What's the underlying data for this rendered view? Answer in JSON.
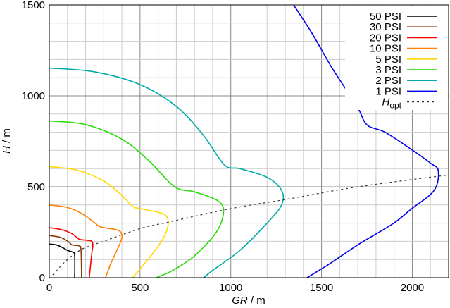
{
  "chart_data": {
    "type": "line",
    "xlabel_var": "GR",
    "xlabel_unit": " / m",
    "ylabel_var": "H",
    "ylabel_unit": " / m",
    "xlim": [
      0,
      2200
    ],
    "ylim": [
      0,
      1500
    ],
    "xticks": [
      0,
      500,
      1000,
      1500,
      2000
    ],
    "yticks": [
      0,
      500,
      1000,
      1500
    ],
    "grid": true,
    "legend": "top-right",
    "series": [
      {
        "name": "50 PSI",
        "color": "#000000",
        "dash": false,
        "points": [
          [
            0,
            185
          ],
          [
            40,
            180
          ],
          [
            80,
            162
          ],
          [
            100,
            150
          ],
          [
            130,
            140
          ],
          [
            140,
            120
          ],
          [
            140,
            0
          ]
        ]
      },
      {
        "name": "30 PSI",
        "color": "#8b3a0f",
        "dash": false,
        "points": [
          [
            0,
            232
          ],
          [
            60,
            222
          ],
          [
            100,
            202
          ],
          [
            127,
            180
          ],
          [
            165,
            175
          ],
          [
            175,
            150
          ],
          [
            178,
            0
          ]
        ]
      },
      {
        "name": "20 PSI",
        "color": "#ff0000",
        "dash": false,
        "points": [
          [
            0,
            275
          ],
          [
            60,
            266
          ],
          [
            120,
            245
          ],
          [
            160,
            215
          ],
          [
            175,
            209
          ],
          [
            230,
            202
          ],
          [
            240,
            180
          ],
          [
            235,
            140
          ],
          [
            220,
            0
          ]
        ]
      },
      {
        "name": "10 PSI",
        "color": "#ff7f00",
        "dash": false,
        "points": [
          [
            0,
            400
          ],
          [
            100,
            386
          ],
          [
            180,
            352
          ],
          [
            250,
            302
          ],
          [
            283,
            279
          ],
          [
            375,
            262
          ],
          [
            400,
            236
          ],
          [
            390,
            190
          ],
          [
            340,
            80
          ],
          [
            310,
            0
          ]
        ]
      },
      {
        "name": "5 PSI",
        "color": "#ffd700",
        "dash": false,
        "points": [
          [
            0,
            610
          ],
          [
            150,
            592
          ],
          [
            300,
            532
          ],
          [
            400,
            452
          ],
          [
            460,
            392
          ],
          [
            500,
            380
          ],
          [
            630,
            350
          ],
          [
            655,
            300
          ],
          [
            630,
            220
          ],
          [
            560,
            120
          ],
          [
            460,
            0
          ]
        ]
      },
      {
        "name": "3 PSI",
        "color": "#22dd00",
        "dash": false,
        "points": [
          [
            0,
            862
          ],
          [
            200,
            842
          ],
          [
            400,
            762
          ],
          [
            550,
            642
          ],
          [
            690,
            500
          ],
          [
            800,
            472
          ],
          [
            930,
            422
          ],
          [
            960,
            360
          ],
          [
            920,
            250
          ],
          [
            800,
            120
          ],
          [
            680,
            40
          ],
          [
            590,
            0
          ]
        ]
      },
      {
        "name": "2 PSI",
        "color": "#00aaaa",
        "dash": false,
        "points": [
          [
            0,
            1153
          ],
          [
            250,
            1132
          ],
          [
            500,
            1062
          ],
          [
            700,
            942
          ],
          [
            850,
            782
          ],
          [
            965,
            620
          ],
          [
            1050,
            600
          ],
          [
            1200,
            552
          ],
          [
            1280,
            480
          ],
          [
            1280,
            400
          ],
          [
            1200,
            300
          ],
          [
            1050,
            150
          ],
          [
            900,
            40
          ],
          [
            850,
            0
          ]
        ]
      },
      {
        "name": "1 PSI",
        "color": "#0000ee",
        "dash": false,
        "points": [
          [
            1346,
            1500
          ],
          [
            1450,
            1340
          ],
          [
            1560,
            1150
          ],
          [
            1694,
            946
          ],
          [
            1750,
            841
          ],
          [
            1850,
            800
          ],
          [
            2000,
            702
          ],
          [
            2100,
            630
          ],
          [
            2143,
            589
          ],
          [
            2120,
            480
          ],
          [
            1992,
            376
          ],
          [
            1895,
            298
          ],
          [
            1702,
            182
          ],
          [
            1550,
            80
          ],
          [
            1420,
            0
          ]
        ]
      },
      {
        "name": "H",
        "name_sub": "opt",
        "color": "#333333",
        "dash": true,
        "points": [
          [
            19,
            15
          ],
          [
            100,
            100
          ],
          [
            186,
            160
          ],
          [
            300,
            200
          ],
          [
            500,
            270
          ],
          [
            658,
            306
          ],
          [
            1000,
            380
          ],
          [
            1300,
            430
          ],
          [
            1702,
            500
          ],
          [
            2200,
            565
          ]
        ]
      }
    ]
  }
}
